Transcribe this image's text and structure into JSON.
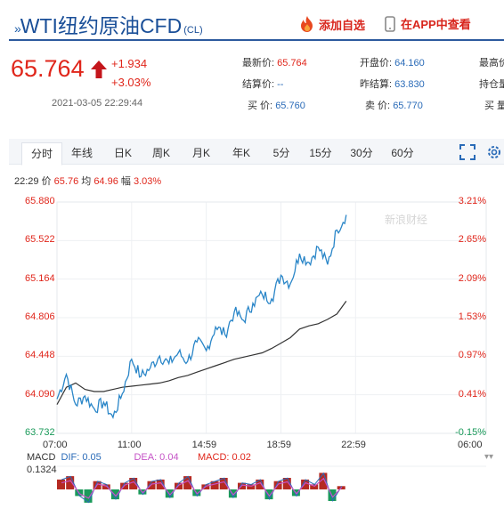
{
  "header": {
    "title": "WTI纽约原油CFD",
    "code": "(CL)",
    "add_watchlist_label": "添加自选",
    "open_app_label": "在APP中查看"
  },
  "price": {
    "last": "65.764",
    "change": "+1.934",
    "change_pct": "+3.03%",
    "datetime": "2021-03-05 22:29:44"
  },
  "quote": {
    "col1": [
      {
        "label": "最新价:",
        "value": "65.764"
      },
      {
        "label": "结算价:",
        "value": "--"
      },
      {
        "label": "买   价:",
        "value": "65.760"
      }
    ],
    "col2": [
      {
        "label": "开盘价:",
        "value": "64.160"
      },
      {
        "label": "昨结算:",
        "value": "63.830"
      },
      {
        "label": "卖   价:",
        "value": "65.770"
      }
    ],
    "col3": [
      {
        "label": "最高价"
      },
      {
        "label": "持仓量"
      },
      {
        "label": "买   量"
      }
    ]
  },
  "tabs": [
    "分时",
    "年线",
    "日K",
    "周K",
    "月K",
    "年K",
    "5分",
    "15分",
    "30分",
    "60分"
  ],
  "legend": {
    "time": "22:29",
    "price_label": "价",
    "price_value": "65.76",
    "avg_label": "均",
    "avg_value": "64.96",
    "amp_label": "幅",
    "amp_value": "3.03%"
  },
  "watermark": "新浪财经",
  "macd": {
    "name": "MACD",
    "dif": "DIF: 0.05",
    "dea": "DEA: 0.04",
    "macd": "MACD: 0.02",
    "top_value": "0.1324"
  },
  "colors": {
    "up": "#e0261b",
    "price_line": "#2a86c8",
    "avg_line": "#333333",
    "dea_line": "#c553c6",
    "down_green": "#1a9a5a",
    "brand_blue": "#1a4f98"
  },
  "chart_data": {
    "type": "line",
    "title": "",
    "xlabel": "",
    "ylabel": "",
    "x_ticks": [
      "07:00",
      "11:00",
      "14:59",
      "18:59",
      "22:59",
      "06:00"
    ],
    "y_ticks_price": [
      "65.880",
      "65.522",
      "65.164",
      "64.806",
      "64.448",
      "64.090",
      "63.732"
    ],
    "y_ticks_pct": [
      "3.21%",
      "2.65%",
      "2.09%",
      "1.53%",
      "0.97%",
      "0.41%",
      "-0.15%"
    ],
    "ylim": [
      63.732,
      65.88
    ],
    "x": [
      "07:00",
      "07:30",
      "08:00",
      "08:30",
      "09:00",
      "09:30",
      "10:00",
      "10:30",
      "11:00",
      "11:30",
      "12:00",
      "12:30",
      "13:00",
      "13:30",
      "14:00",
      "14:30",
      "14:59",
      "15:30",
      "16:00",
      "16:30",
      "17:00",
      "17:30",
      "18:00",
      "18:30",
      "18:59",
      "19:30",
      "20:00",
      "20:30",
      "21:00",
      "21:30",
      "22:00",
      "22:29"
    ],
    "series": [
      {
        "name": "价",
        "values": [
          64.05,
          64.28,
          64.0,
          64.08,
          63.96,
          64.02,
          63.88,
          64.1,
          64.42,
          64.26,
          64.34,
          64.45,
          64.38,
          64.48,
          64.4,
          64.58,
          64.5,
          64.72,
          64.65,
          64.86,
          64.78,
          64.94,
          65.02,
          64.98,
          65.2,
          65.12,
          65.4,
          65.32,
          65.46,
          65.3,
          65.62,
          65.76
        ]
      },
      {
        "name": "均",
        "values": [
          64.0,
          64.16,
          64.2,
          64.14,
          64.12,
          64.12,
          64.14,
          64.16,
          64.17,
          64.18,
          64.19,
          64.2,
          64.22,
          64.25,
          64.27,
          64.3,
          64.33,
          64.36,
          64.39,
          64.42,
          64.44,
          64.46,
          64.48,
          64.52,
          64.57,
          64.62,
          64.7,
          64.73,
          64.75,
          64.79,
          64.84,
          64.96
        ]
      }
    ],
    "macd_histogram": [
      0.06,
      0.08,
      -0.04,
      -0.08,
      0.05,
      0.03,
      -0.06,
      0.04,
      0.07,
      -0.03,
      0.05,
      0.06,
      -0.05,
      0.04,
      0.08,
      -0.04,
      0.03,
      0.05,
      0.07,
      -0.05,
      0.04,
      0.03,
      0.06,
      -0.06,
      0.05,
      0.07,
      -0.04,
      0.06,
      0.03,
      0.1,
      -0.07,
      0.02
    ],
    "grid": true
  }
}
